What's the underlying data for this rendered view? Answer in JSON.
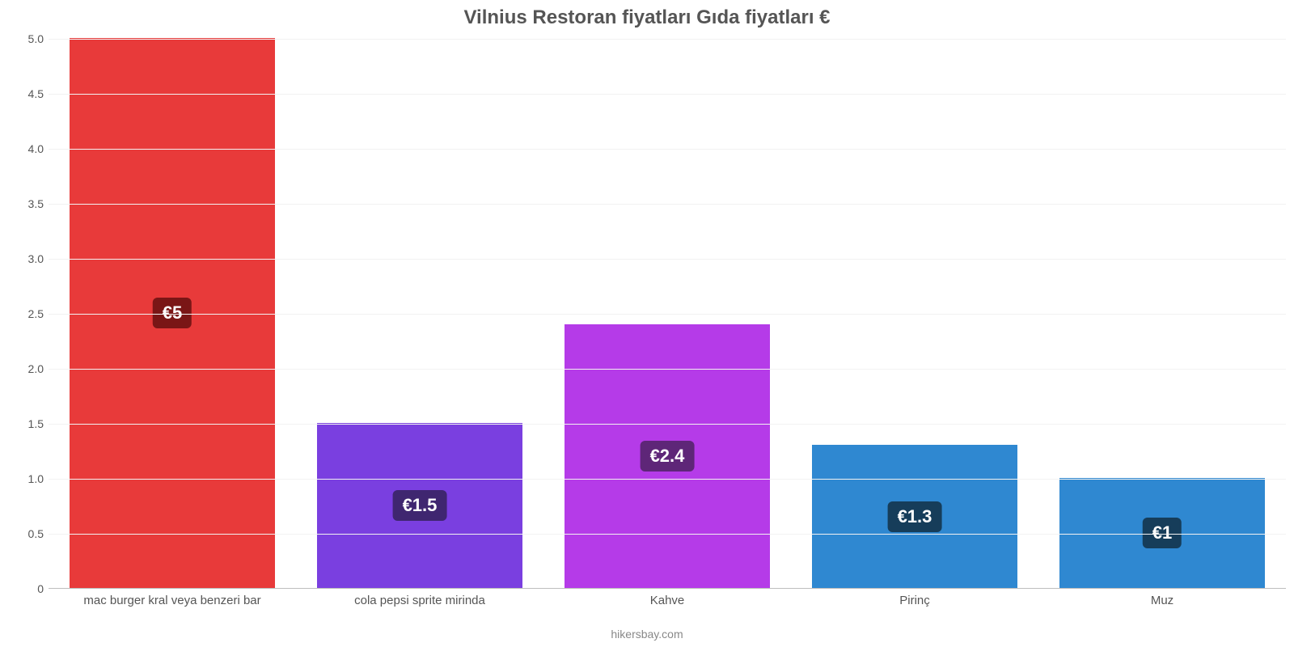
{
  "chart": {
    "type": "bar",
    "title": "Vilnius Restoran fiyatları Gıda fiyatları €",
    "title_fontsize": 24,
    "title_color": "#555555",
    "source": "hikersbay.com",
    "source_color": "#888888",
    "background_color": "#ffffff",
    "grid_color": "#f2f2f2",
    "axis_color": "#bdbdbd",
    "tick_label_color": "#555555",
    "tick_label_fontsize": 14,
    "xtick_label_fontsize": 15,
    "ylim": [
      0,
      5.0
    ],
    "yticks": [
      0,
      0.5,
      1.0,
      1.5,
      2.0,
      2.5,
      3.0,
      3.5,
      4.0,
      4.5,
      5.0
    ],
    "ytick_labels": [
      "0",
      "0.5",
      "1.0",
      "1.5",
      "2.0",
      "2.5",
      "3.0",
      "3.5",
      "4.0",
      "4.5",
      "5.0"
    ],
    "bar_width": 0.83,
    "categories": [
      "mac burger kral veya benzeri bar",
      "cola pepsi sprite mirinda",
      "Kahve",
      "Pirinç",
      "Muz"
    ],
    "values": [
      5.0,
      1.5,
      2.4,
      1.3,
      1.0
    ],
    "value_labels": [
      "€5",
      "€1.5",
      "€2.4",
      "€1.3",
      "€1"
    ],
    "bar_colors": [
      "#e83a3a",
      "#7a3fe0",
      "#b53be8",
      "#2f88d1",
      "#2f88d1"
    ],
    "badge_colors": [
      "#7a1616",
      "#3f2670",
      "#5e2678",
      "#163d5a",
      "#163d5a"
    ],
    "badge_text_color": "#ffffff",
    "badge_fontsize": 22
  }
}
